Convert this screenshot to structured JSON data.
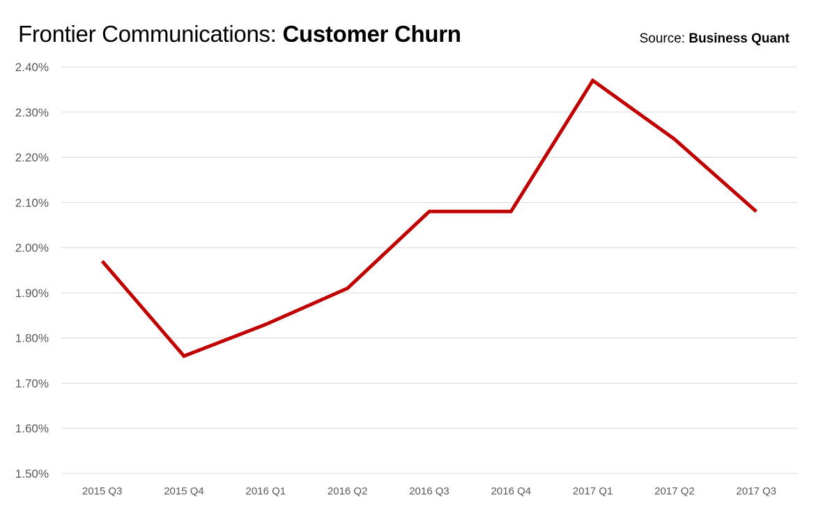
{
  "header": {
    "title_prefix": "Frontier Communications: ",
    "title_highlight": "Customer Churn",
    "source_prefix": "Source: ",
    "source_name": "Business Quant"
  },
  "colors": {
    "accent": "#C00000",
    "gridline": "#D9D9D9",
    "tick_text": "#595959",
    "title_text": "#000000"
  },
  "chart_data": {
    "type": "line",
    "title": "Frontier Communications: Customer Churn",
    "xlabel": "",
    "ylabel": "",
    "categories": [
      "2015 Q3",
      "2015 Q4",
      "2016 Q1",
      "2016 Q2",
      "2016 Q3",
      "2016 Q4",
      "2017 Q1",
      "2017 Q2",
      "2017 Q3"
    ],
    "series": [
      {
        "values": [
          1.97,
          1.76,
          1.83,
          1.91,
          2.08,
          2.08,
          2.37,
          2.24,
          2.08
        ]
      }
    ],
    "ylim": [
      1.5,
      2.4
    ],
    "yticks": [
      1.5,
      1.6,
      1.7,
      1.8,
      1.9,
      2.0,
      2.1,
      2.2,
      2.3,
      2.4
    ],
    "ytick_labels": [
      "1.50%",
      "1.60%",
      "1.70%",
      "1.80%",
      "1.90%",
      "2.00%",
      "2.10%",
      "2.20%",
      "2.30%",
      "2.40%"
    ],
    "grid": true,
    "legend": "none"
  }
}
